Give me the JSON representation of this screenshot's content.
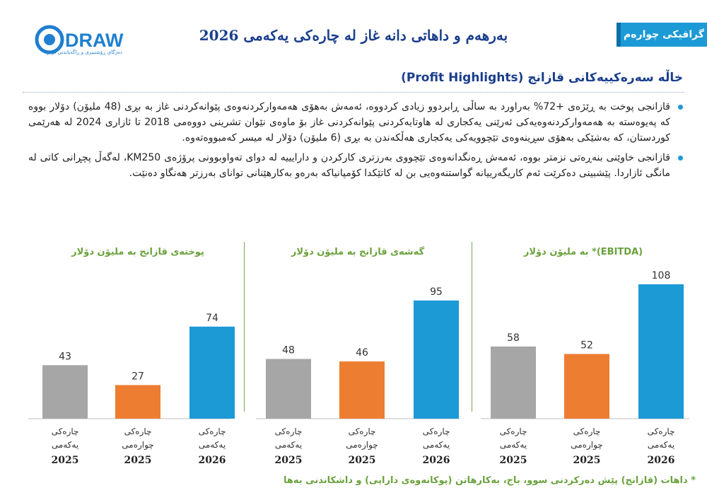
{
  "logo": {
    "text": "DRAW",
    "subtitle": "دەزگای ڕۆشنبیری و ڕاگەیاندنی درەو"
  },
  "header": {
    "title": "بەرهەم و داهاتی دانە غاز لە چارەکی یەکەمی 2026",
    "tag": "گرافیکی چوارەم"
  },
  "section": {
    "title": "خاڵە سەرەکییەکانی قازانج (Profit Highlights)"
  },
  "bullets": [
    "قازانجی پوخت بە ڕێژەی +72% بەراورد بە ساڵی ڕابردوو زیادی کردووە، ئەمەش بەهۆی هەمەوارکردنەوەی پێوانەکردنی غاز بە بڕی (48 ملیۆن) دۆلار بووە کە پەیوەستە بە هەمەوارکردنەوەیەکی ئەرێنی یەکجاری لە هاوتایەکردنی پێوانەکردنی غاز بۆ ماوەی نێوان تشرینی دووەمی 2018 تا ئازاری 2024 لە هەرێمی کوردستان، کە بەشێکی بەهۆی سڕینەوەی تێچوویەکی یەکجاری هەڵکەندن بە بڕی (6 ملیۆن) دۆلار لە میسر کەمبووەتەوە.",
    "قازانجی خاوێنی بنەڕەتی نزمتر بووە، ئەمەش ڕەنگدانەوەی تێچووی بەرزتری کارکردن و دارایییە لە دوای تەواوبوونی پرۆژەی KM250، لەگەڵ پچڕانی کاتی لە مانگی ئازاردا. پێشبینی دەکرێت ئەم کاریگەرییانە گواستنەوەیی بن لە کاتێکدا کۆمپانیاکە بەرەو بەکارهێنانی توانای بەرزتر هەنگاو دەنێت."
  ],
  "colors": {
    "gray": "#a6a6a6",
    "orange": "#ed7d31",
    "blue": "#1c9ad6",
    "green": "#6aa23c",
    "navy": "#1a3e8c"
  },
  "chart_data": [
    {
      "type": "bar",
      "title": "پوختەی قازانج بە ملیۆن دۆلار",
      "categories": [
        {
          "line1": "چارەکی",
          "line2": "یەکەمی",
          "year": "2025"
        },
        {
          "line1": "چارەکی",
          "line2": "چوارەمی",
          "year": "2025"
        },
        {
          "line1": "چارەکی",
          "line2": "یەکەمی",
          "year": "2026"
        }
      ],
      "values": [
        43,
        27,
        74
      ],
      "bar_colors": [
        "#a6a6a6",
        "#ed7d31",
        "#1c9ad6"
      ],
      "ylim": [
        0,
        108
      ],
      "grid": false,
      "legend": "none"
    },
    {
      "type": "bar",
      "title": "گەشەی قازانج بە ملیۆن دۆلار",
      "categories": [
        {
          "line1": "چارەکی",
          "line2": "یەکەمی",
          "year": "2025"
        },
        {
          "line1": "چارەکی",
          "line2": "چوارەمی",
          "year": "2025"
        },
        {
          "line1": "چارەکی",
          "line2": "یەکەمی",
          "year": "2026"
        }
      ],
      "values": [
        48,
        46,
        95
      ],
      "bar_colors": [
        "#a6a6a6",
        "#ed7d31",
        "#1c9ad6"
      ],
      "ylim": [
        0,
        108
      ],
      "grid": false,
      "legend": "none"
    },
    {
      "type": "bar",
      "title": "(EBITDA)* بە ملیۆن دۆلار",
      "categories": [
        {
          "line1": "چارەکی",
          "line2": "یەکەمی",
          "year": "2025"
        },
        {
          "line1": "چارەکی",
          "line2": "چوارەمی",
          "year": "2025"
        },
        {
          "line1": "چارەکی",
          "line2": "یەکەمی",
          "year": "2026"
        }
      ],
      "values": [
        58,
        52,
        108
      ],
      "bar_colors": [
        "#a6a6a6",
        "#ed7d31",
        "#1c9ad6"
      ],
      "ylim": [
        0,
        108
      ],
      "grid": false,
      "legend": "none"
    }
  ],
  "footnote": "* داهات (قازانج) پێش دەرکردنی سوو، باج، بەکارهاتن (پوکانەوەی دارایی) و داشکاندنی بەها"
}
